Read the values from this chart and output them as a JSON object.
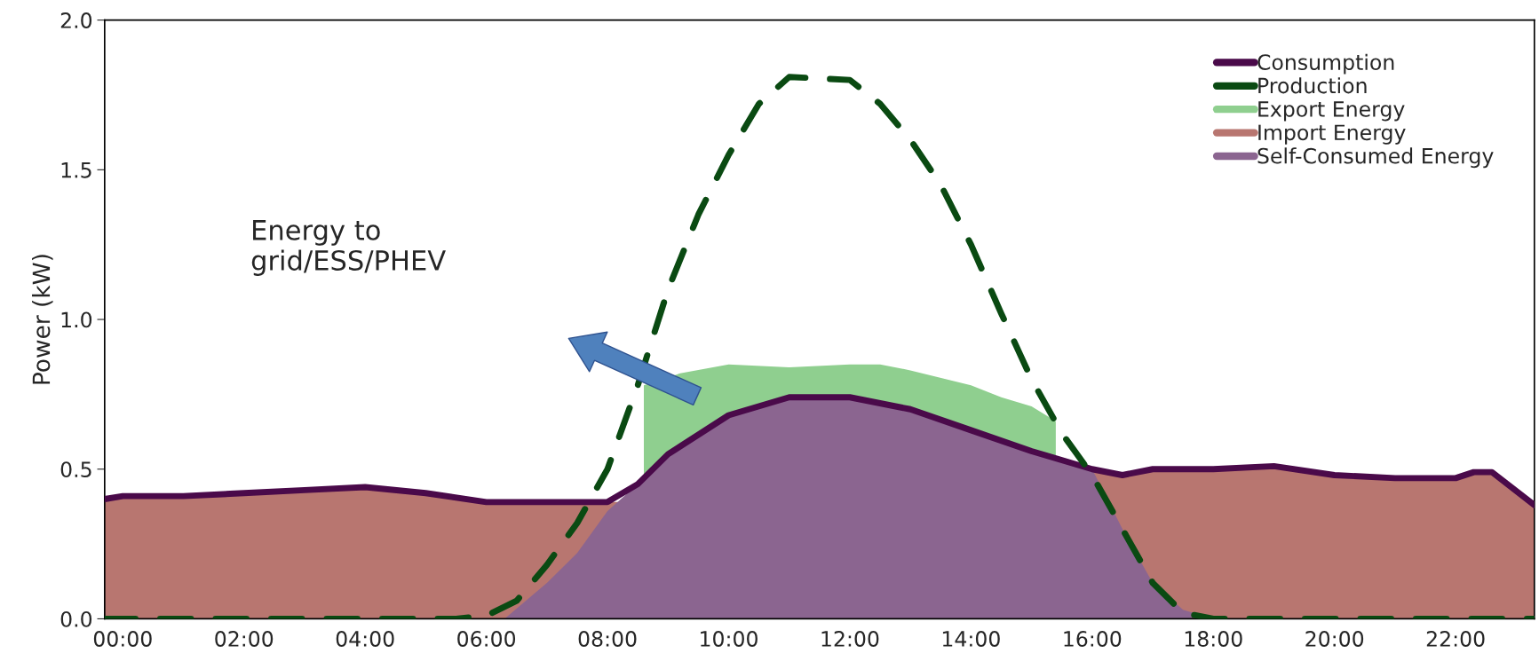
{
  "chart_data": {
    "type": "line",
    "ylabel": "Power (kW)",
    "xlim": [
      -0.3,
      23.3
    ],
    "xticks": [
      {
        "value": 0,
        "label": "00:00"
      },
      {
        "value": 2,
        "label": "02:00"
      },
      {
        "value": 4,
        "label": "04:00"
      },
      {
        "value": 6,
        "label": "06:00"
      },
      {
        "value": 8,
        "label": "08:00"
      },
      {
        "value": 10,
        "label": "10:00"
      },
      {
        "value": 12,
        "label": "12:00"
      },
      {
        "value": 14,
        "label": "14:00"
      },
      {
        "value": 16,
        "label": "16:00"
      },
      {
        "value": 18,
        "label": "18:00"
      },
      {
        "value": 20,
        "label": "20:00"
      },
      {
        "value": 22,
        "label": "22:00"
      }
    ],
    "ylim": [
      0,
      2
    ],
    "yticks": [
      {
        "value": 0,
        "label": "0.0"
      },
      {
        "value": 0.5,
        "label": "0.5"
      },
      {
        "value": 1,
        "label": "1.0"
      },
      {
        "value": 1.5,
        "label": "1.5"
      },
      {
        "value": 2,
        "label": "2.0"
      }
    ],
    "legend": "top right",
    "series": [
      {
        "name": "Consumption",
        "type": "line",
        "color": "#4a0a4a",
        "line_style": "solid",
        "x": [
          -0.3,
          0,
          1,
          2,
          3,
          4,
          5,
          6,
          7,
          8,
          8.5,
          9,
          10,
          11,
          12,
          13,
          14,
          15,
          16,
          16.5,
          17,
          18,
          19,
          20,
          21,
          22,
          22.3,
          22.6,
          23.3
        ],
        "values": [
          0.4,
          0.41,
          0.41,
          0.42,
          0.43,
          0.44,
          0.42,
          0.39,
          0.39,
          0.39,
          0.45,
          0.55,
          0.68,
          0.74,
          0.74,
          0.7,
          0.63,
          0.56,
          0.5,
          0.48,
          0.5,
          0.5,
          0.51,
          0.48,
          0.47,
          0.47,
          0.49,
          0.49,
          0.38
        ]
      },
      {
        "name": "Production",
        "type": "line",
        "color": "#0a4a12",
        "line_style": "dashed",
        "x": [
          -0.3,
          0,
          2,
          4,
          5.5,
          6,
          6.5,
          7,
          7.5,
          8,
          8.5,
          9,
          9.5,
          10,
          10.5,
          11,
          12,
          12.5,
          13,
          13.5,
          14,
          14.5,
          15,
          15.5,
          16,
          16.5,
          17,
          17.5,
          18,
          20,
          22,
          23.3
        ],
        "values": [
          0,
          0,
          0,
          0,
          0,
          0.01,
          0.06,
          0.18,
          0.32,
          0.5,
          0.78,
          1.1,
          1.35,
          1.55,
          1.72,
          1.81,
          1.8,
          1.72,
          1.6,
          1.45,
          1.25,
          1.02,
          0.8,
          0.62,
          0.48,
          0.3,
          0.12,
          0.02,
          0,
          0,
          0,
          0
        ]
      },
      {
        "name": "Export Energy",
        "type": "area",
        "color": "#8fcf8f",
        "x": [
          8.6,
          9.2,
          10,
          11,
          12,
          12.5,
          13,
          14,
          14.5,
          15,
          15.4
        ],
        "values": [
          0.78,
          0.82,
          0.85,
          0.84,
          0.85,
          0.85,
          0.83,
          0.78,
          0.74,
          0.71,
          0.66
        ]
      },
      {
        "name": "Import Energy",
        "type": "area",
        "color": "#b87670",
        "x": [
          -0.3,
          0,
          1,
          2,
          3,
          4,
          5,
          6,
          7,
          8,
          8.2,
          15.9,
          16,
          16.5,
          17,
          18,
          19,
          20,
          21,
          22,
          22.3,
          22.6,
          23.3
        ],
        "values": [
          0.4,
          0.41,
          0.41,
          0.42,
          0.43,
          0.44,
          0.42,
          0.39,
          0.39,
          0.39,
          0.39,
          0.5,
          0.5,
          0.48,
          0.5,
          0.5,
          0.51,
          0.48,
          0.47,
          0.47,
          0.49,
          0.49,
          0.38
        ]
      },
      {
        "name": "Self-Consumed Energy",
        "type": "area",
        "color": "#8b6590",
        "x": [
          6.3,
          7,
          7.5,
          8,
          8.5,
          9,
          10,
          11,
          12,
          13,
          14,
          15,
          16,
          16.5,
          17,
          17.5,
          18
        ],
        "values": [
          0,
          0.12,
          0.22,
          0.36,
          0.45,
          0.55,
          0.68,
          0.74,
          0.74,
          0.7,
          0.63,
          0.56,
          0.5,
          0.3,
          0.12,
          0.03,
          0
        ]
      }
    ],
    "annotations": [
      "Energy to\ngrid/ESS/PHEV"
    ]
  }
}
